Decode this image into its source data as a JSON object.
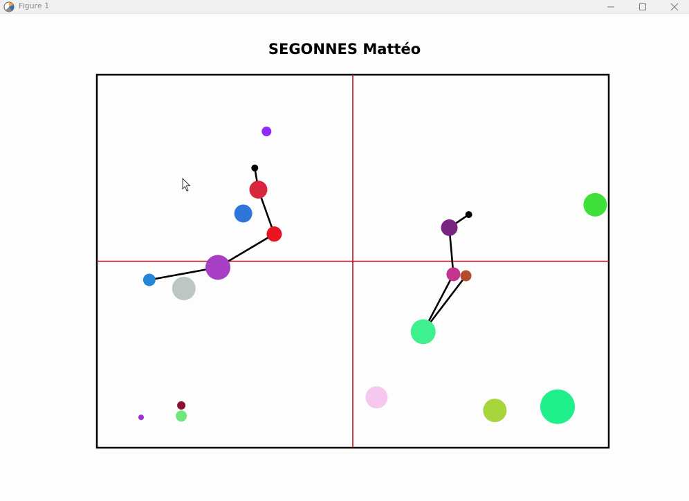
{
  "window": {
    "title": "Figure 1",
    "icon": "matplotlib-figure-icon",
    "controls": [
      "minimize-icon",
      "maximize-icon",
      "close-icon"
    ]
  },
  "chart_data": {
    "type": "scatter",
    "title": "SEGONNES Mattéo",
    "xlim": [
      -1,
      1
    ],
    "ylim": [
      -1,
      1
    ],
    "grid": false,
    "axes_lines": {
      "x": 0,
      "y": 0,
      "color": "#c1121f"
    },
    "points": [
      {
        "name": "purple-small-top",
        "x": -0.337,
        "y": 0.696,
        "size": 7,
        "color": "#8f2bf5"
      },
      {
        "name": "pendulum-left-pivot",
        "x": -0.383,
        "y": 0.5,
        "size": 5,
        "color": "#000000"
      },
      {
        "name": "crimson-bob",
        "x": -0.369,
        "y": 0.384,
        "size": 13,
        "color": "#d7263d"
      },
      {
        "name": "blue-ball",
        "x": -0.428,
        "y": 0.256,
        "size": 13,
        "color": "#2f76d9"
      },
      {
        "name": "red-bob",
        "x": -0.307,
        "y": 0.146,
        "size": 11,
        "color": "#e8141f"
      },
      {
        "name": "violet-bob",
        "x": -0.527,
        "y": -0.033,
        "size": 18,
        "color": "#a63fc4"
      },
      {
        "name": "blue-end",
        "x": -0.795,
        "y": -0.1,
        "size": 9,
        "color": "#2686d6"
      },
      {
        "name": "grey-ball",
        "x": -0.66,
        "y": -0.146,
        "size": 17,
        "color": "#bcc6c4"
      },
      {
        "name": "maroon-small",
        "x": -0.67,
        "y": -0.773,
        "size": 6,
        "color": "#8a0f32"
      },
      {
        "name": "green-small",
        "x": -0.67,
        "y": -0.83,
        "size": 8,
        "color": "#6ee87a"
      },
      {
        "name": "violet-tiny",
        "x": -0.827,
        "y": -0.837,
        "size": 4,
        "color": "#9b30d9"
      },
      {
        "name": "green-large-right",
        "x": 0.947,
        "y": 0.303,
        "size": 17,
        "color": "#3fe03a"
      },
      {
        "name": "pendulum-right-pivot",
        "x": 0.453,
        "y": 0.25,
        "size": 5,
        "color": "#000000"
      },
      {
        "name": "plum-bob",
        "x": 0.377,
        "y": 0.18,
        "size": 12,
        "color": "#7a2482"
      },
      {
        "name": "magenta-bob",
        "x": 0.393,
        "y": -0.07,
        "size": 10,
        "color": "#c4348e"
      },
      {
        "name": "brown-bob",
        "x": 0.442,
        "y": -0.078,
        "size": 8,
        "color": "#b34d2e"
      },
      {
        "name": "mint-ball",
        "x": 0.275,
        "y": -0.378,
        "size": 18,
        "color": "#3ff08e"
      },
      {
        "name": "pink-ball",
        "x": 0.093,
        "y": -0.73,
        "size": 16,
        "color": "#f6c8ee"
      },
      {
        "name": "lime-ball",
        "x": 0.555,
        "y": -0.8,
        "size": 17,
        "color": "#a6d63b"
      },
      {
        "name": "spring-green-large",
        "x": 0.8,
        "y": -0.78,
        "size": 25,
        "color": "#1ff08c"
      }
    ],
    "segments": [
      {
        "from": "pendulum-left-pivot",
        "to": "crimson-bob"
      },
      {
        "from": "crimson-bob",
        "to": "red-bob"
      },
      {
        "from": "red-bob",
        "to": "violet-bob"
      },
      {
        "from": "violet-bob",
        "to": "blue-end"
      },
      {
        "from": "pendulum-right-pivot",
        "to": "plum-bob"
      },
      {
        "from": "plum-bob",
        "to": "magenta-bob"
      },
      {
        "from": "magenta-bob",
        "to": "mint-ball"
      },
      {
        "from": "mint-ball",
        "to": "brown-bob"
      }
    ]
  }
}
